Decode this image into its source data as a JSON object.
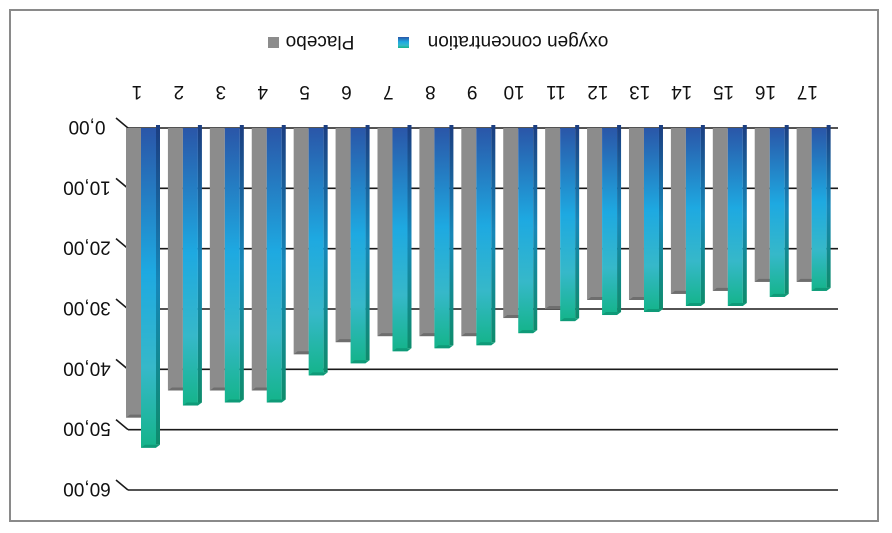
{
  "chart_data": {
    "type": "bar",
    "orientation": "vertical-inverted",
    "categories": [
      "1",
      "2",
      "3",
      "4",
      "5",
      "6",
      "7",
      "8",
      "9",
      "10",
      "11",
      "12",
      "13",
      "14",
      "15",
      "16",
      "17"
    ],
    "series": [
      {
        "name": "Placebo",
        "color": "#8c8c8c",
        "values": [
          48.0,
          43.5,
          43.5,
          43.5,
          37.5,
          35.5,
          34.5,
          34.5,
          34.5,
          31.5,
          30.0,
          28.5,
          28.5,
          27.5,
          27.0,
          25.5,
          25.5
        ]
      },
      {
        "name": "oxygen concentration",
        "color": "#1e9fd8",
        "values": [
          53.0,
          46.0,
          45.5,
          45.5,
          41.0,
          39.0,
          37.0,
          36.5,
          36.0,
          34.0,
          32.0,
          31.0,
          30.5,
          29.5,
          29.5,
          28.0,
          27.0
        ]
      }
    ],
    "y_ticks": [
      "0,00",
      "10,00",
      "20,00",
      "30,00",
      "40,00",
      "50,00",
      "60,00"
    ],
    "ylim": [
      0,
      60
    ],
    "grid": true,
    "legend_position": "top",
    "image_mirrored": true
  }
}
